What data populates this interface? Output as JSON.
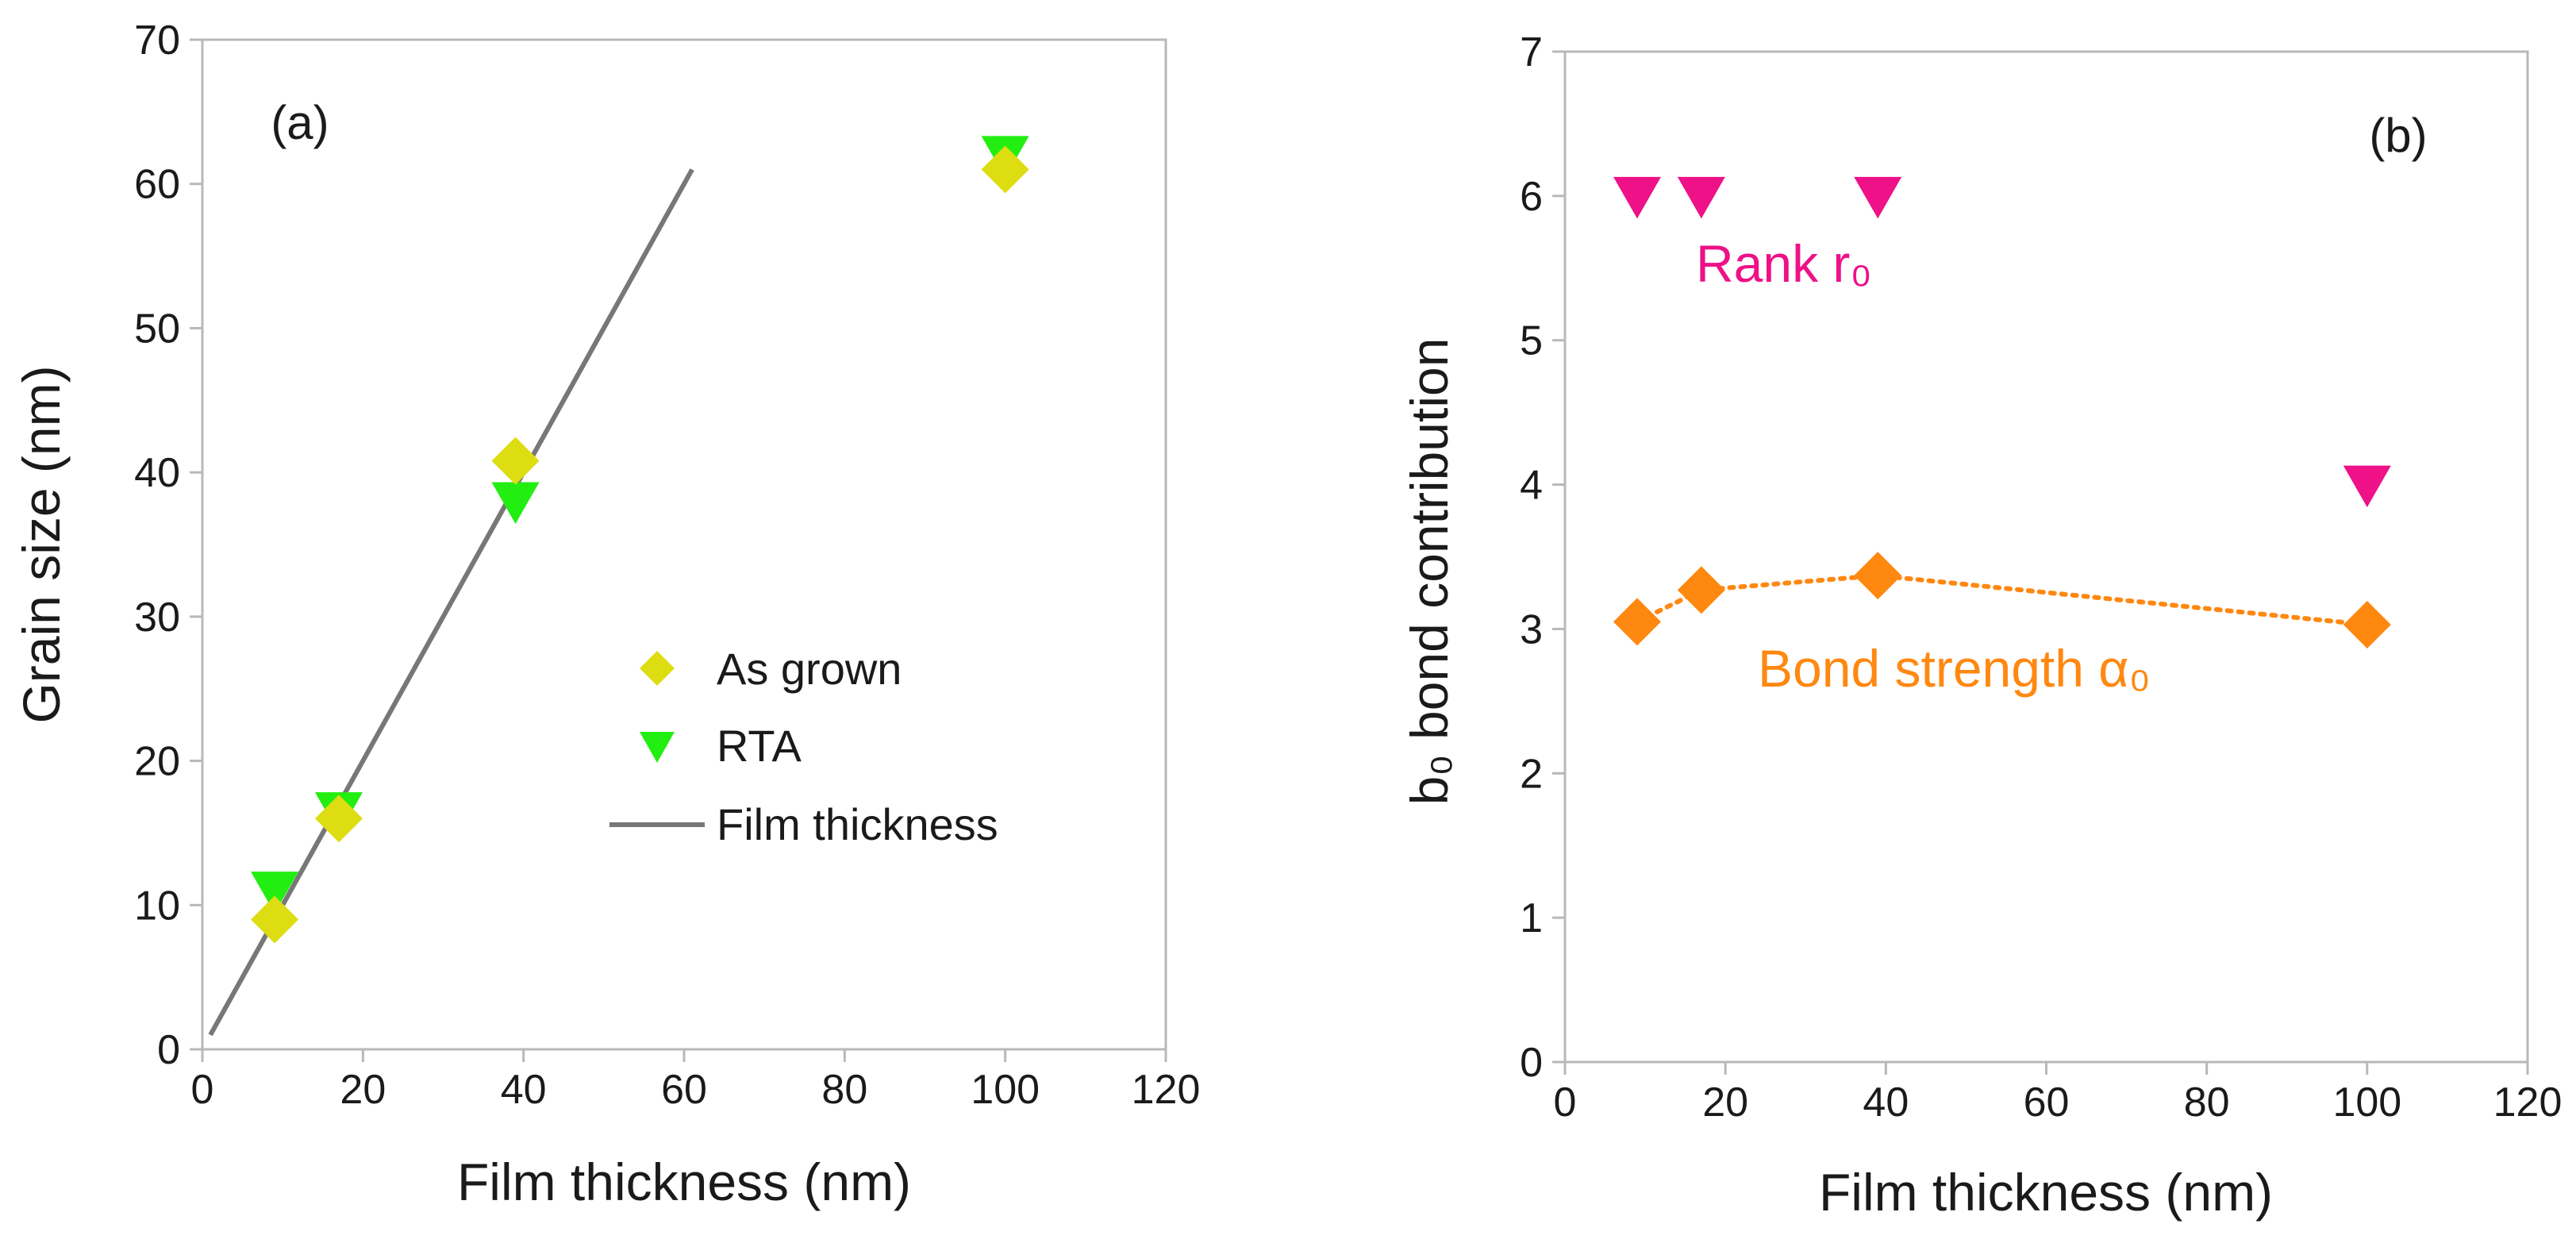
{
  "chart_data": [
    {
      "type": "scatter",
      "panel_label": "(a)",
      "xlabel": "Film thickness (nm)",
      "ylabel": "Grain size (nm)",
      "xlim": [
        0,
        120
      ],
      "ylim": [
        0,
        70
      ],
      "xticks": [
        "0",
        "20",
        "40",
        "60",
        "80",
        "100",
        "120"
      ],
      "yticks": [
        "0",
        "10",
        "20",
        "30",
        "40",
        "50",
        "60",
        "70"
      ],
      "grid": false,
      "legend_position": "center-right",
      "series": [
        {
          "name": "RTA",
          "marker": "triangle-down",
          "color": "#22ee11",
          "x": [
            9,
            17,
            39,
            100
          ],
          "y": [
            11,
            16.5,
            38,
            62
          ]
        },
        {
          "name": "As grown",
          "marker": "diamond",
          "color": "#dddd11",
          "x": [
            9,
            17,
            39,
            100
          ],
          "y": [
            9,
            16,
            40.8,
            61
          ]
        },
        {
          "name": "Film thickness",
          "marker": "line",
          "color": "#777777",
          "x": [
            1,
            61
          ],
          "y": [
            1,
            61
          ]
        }
      ],
      "legend": [
        "As grown",
        "RTA",
        "Film thickness"
      ]
    },
    {
      "type": "scatter",
      "panel_label": "(b)",
      "xlabel": "Film thickness (nm)",
      "ylabel": "b₀ bond contribution",
      "xlim": [
        0,
        120
      ],
      "ylim": [
        0,
        7
      ],
      "xticks": [
        "0",
        "20",
        "40",
        "60",
        "80",
        "100",
        "120"
      ],
      "yticks": [
        "0",
        "1",
        "2",
        "3",
        "4",
        "5",
        "6",
        "7"
      ],
      "grid": false,
      "series": [
        {
          "name": "Rank r₀",
          "marker": "triangle-down",
          "color": "#ee1188",
          "x": [
            9,
            17,
            39,
            100
          ],
          "y": [
            6,
            6,
            6,
            4
          ]
        },
        {
          "name": "Bond strength α₀",
          "marker": "diamond",
          "line": "dotted",
          "color": "#ff8811",
          "x": [
            9,
            17,
            39,
            100
          ],
          "y": [
            3.05,
            3.27,
            3.37,
            3.03
          ]
        }
      ],
      "annotations": [
        {
          "text": "Rank r₀",
          "color": "#ee1188"
        },
        {
          "text": "Bond strength α₀",
          "color": "#ff8811"
        }
      ]
    }
  ]
}
